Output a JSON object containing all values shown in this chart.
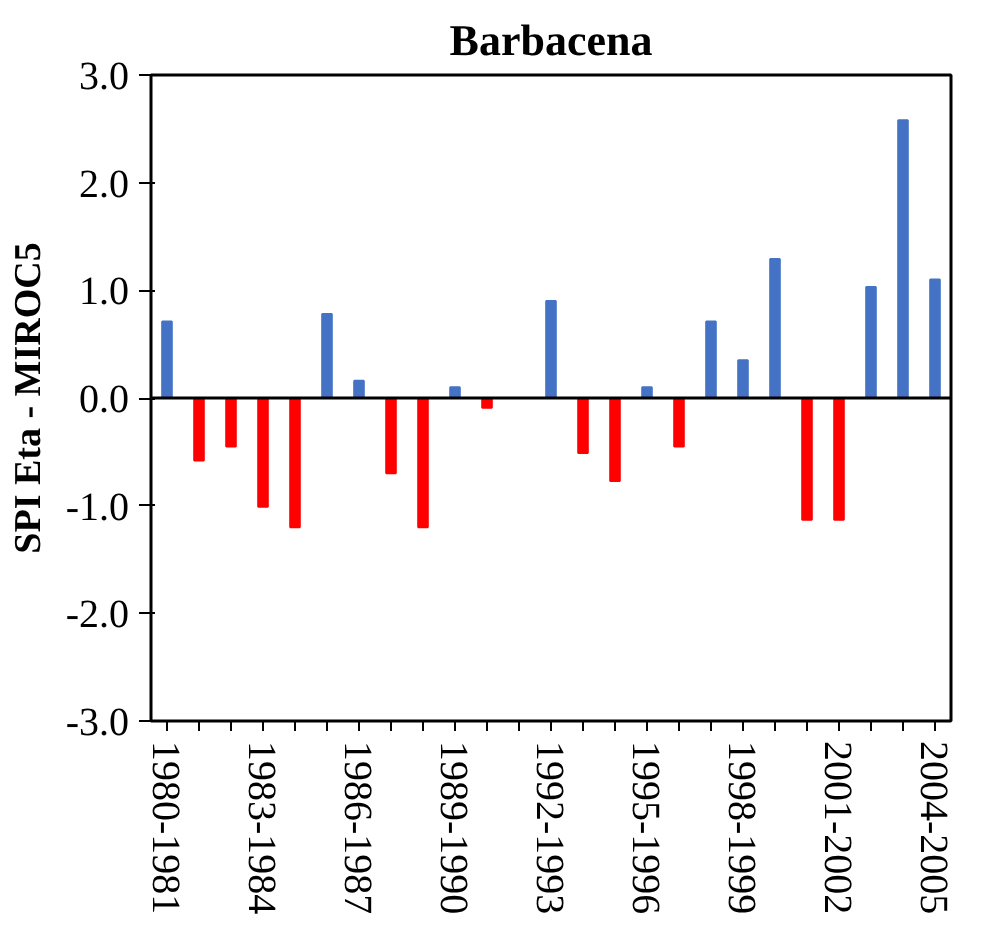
{
  "chart_data": {
    "type": "bar",
    "title": "Barbacena",
    "ylabel": "SPI Eta - MIROC5",
    "categories": [
      "1980-1981",
      null,
      null,
      "1983-1984",
      null,
      null,
      "1986-1987",
      null,
      null,
      "1989-1990",
      null,
      null,
      "1992-1993",
      null,
      null,
      "1995-1996",
      null,
      null,
      "1998-1999",
      null,
      null,
      "2001-2002",
      null,
      null,
      "2004-2005"
    ],
    "values": [
      0.71,
      -0.58,
      -0.45,
      -1.01,
      -1.2,
      0.78,
      0.16,
      -0.7,
      -1.2,
      0.1,
      -0.09,
      0,
      0.9,
      -0.51,
      -0.77,
      0.1,
      -0.45,
      0.71,
      0.35,
      1.29,
      -1.13,
      -1.13,
      1.03,
      2.58,
      1.1
    ],
    "colors": [
      "#4472c4",
      "#ff0000",
      "#ff0000",
      "#ff0000",
      "#ff0000",
      "#4472c4",
      "#4472c4",
      "#ff0000",
      "#ff0000",
      "#4472c4",
      "#ff0000",
      "#4472c4",
      "#4472c4",
      "#ff0000",
      "#ff0000",
      "#4472c4",
      "#ff0000",
      "#4472c4",
      "#4472c4",
      "#4472c4",
      "#ff0000",
      "#ff0000",
      "#4472c4",
      "#4472c4",
      "#4472c4"
    ],
    "ylim": [
      -3,
      3
    ],
    "yticks": [
      {
        "value": -3,
        "label": "-3.0"
      },
      {
        "value": -2,
        "label": "-2.0"
      },
      {
        "value": -1,
        "label": "-1.0"
      },
      {
        "value": 0,
        "label": "0.0"
      },
      {
        "value": 1,
        "label": "1.0"
      },
      {
        "value": 2,
        "label": "2.0"
      },
      {
        "value": 3,
        "label": "3.0"
      }
    ],
    "ref_lines": [
      {
        "axis": "y",
        "value": 0,
        "color": "#000000"
      }
    ],
    "grid": false
  }
}
